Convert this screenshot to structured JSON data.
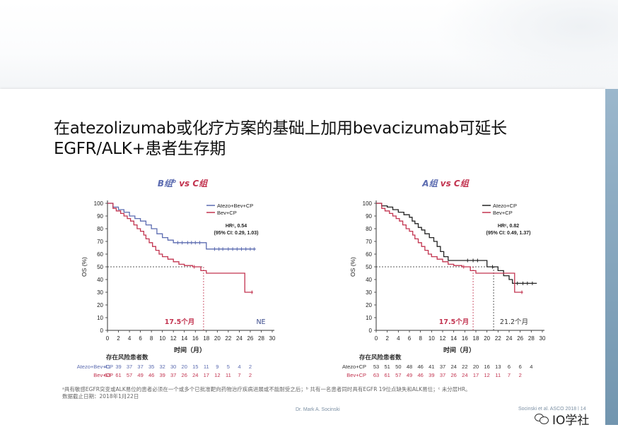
{
  "slide": {
    "title_line1": "在atezolizumab或化疗方案的基础上加用bevacizumab可延长",
    "title_line2": "EGFR/ALK+患者生存期",
    "footnote_line1": "ᵃ具有敏感EGFR突变或ALK易位的患者必须在一个或多个已批准靶向药物治疗疾病进展或不能耐受之后；ᵇ 共有一名患者同时具有EGFR 19位点缺失和ALK易位；ᶜ 未分层HR。",
    "footnote_line2": "数据截止日期：2018年1月22日",
    "presenter": "Dr. Mark A. Socinski",
    "citation": "Socinski et al. ASCO 2018 | 14",
    "watermark": "IO学社"
  },
  "chart_data": [
    {
      "type": "line",
      "subtype": "kaplan-meier",
      "title_left": "B组",
      "title_sup": "b",
      "title_vs": " vs ",
      "title_right": "C组",
      "xlabel": "时间（月）",
      "ylabel": "OS (%)",
      "xlim": [
        0,
        30
      ],
      "ylim": [
        0,
        100
      ],
      "xticks": [
        0,
        2,
        4,
        6,
        8,
        10,
        12,
        14,
        16,
        18,
        20,
        22,
        24,
        26,
        28,
        30
      ],
      "yticks": [
        0,
        10,
        20,
        30,
        40,
        50,
        60,
        70,
        80,
        90,
        100
      ],
      "legend_position": "top-right",
      "hr_line": "HRᶜ, 0.54",
      "ci_line": "(95% CI: 0.29, 1.03)",
      "series": [
        {
          "name": "Atezo+Bev+CP",
          "color": "#5b6bb0",
          "points": [
            [
              0,
              100
            ],
            [
              1,
              100
            ],
            [
              1,
              97
            ],
            [
              2,
              97
            ],
            [
              2,
              95
            ],
            [
              3,
              95
            ],
            [
              3,
              93
            ],
            [
              4,
              93
            ],
            [
              4,
              90
            ],
            [
              5,
              90
            ],
            [
              5,
              88
            ],
            [
              6,
              88
            ],
            [
              6,
              86
            ],
            [
              7,
              86
            ],
            [
              7,
              83
            ],
            [
              8,
              83
            ],
            [
              8,
              80
            ],
            [
              9,
              80
            ],
            [
              9,
              76
            ],
            [
              10,
              76
            ],
            [
              10,
              73
            ],
            [
              11,
              73
            ],
            [
              11,
              71
            ],
            [
              12,
              71
            ],
            [
              12,
              69
            ],
            [
              18,
              69
            ],
            [
              18,
              64
            ],
            [
              27,
              64
            ]
          ],
          "censors": [
            [
              12.8,
              69
            ],
            [
              13.6,
              69
            ],
            [
              14.6,
              69
            ],
            [
              15.3,
              69
            ],
            [
              16.0,
              69
            ],
            [
              16.8,
              69
            ],
            [
              19.5,
              64
            ],
            [
              20.3,
              64
            ],
            [
              21.0,
              64
            ],
            [
              22.0,
              64
            ],
            [
              22.8,
              64
            ],
            [
              23.6,
              64
            ],
            [
              24.4,
              64
            ],
            [
              25.2,
              64
            ],
            [
              26.0,
              64
            ],
            [
              26.7,
              64
            ]
          ]
        },
        {
          "name": "Bev+CP",
          "color": "#c2334f",
          "points": [
            [
              0,
              100
            ],
            [
              1,
              100
            ],
            [
              1,
              96
            ],
            [
              1.6,
              96
            ],
            [
              1.6,
              94
            ],
            [
              2.4,
              94
            ],
            [
              2.4,
              92
            ],
            [
              3,
              92
            ],
            [
              3,
              90
            ],
            [
              3.6,
              90
            ],
            [
              3.6,
              88
            ],
            [
              4.2,
              88
            ],
            [
              4.2,
              86
            ],
            [
              4.8,
              86
            ],
            [
              4.8,
              83
            ],
            [
              5.4,
              83
            ],
            [
              5.4,
              80
            ],
            [
              6,
              80
            ],
            [
              6,
              78
            ],
            [
              6.6,
              78
            ],
            [
              6.6,
              75
            ],
            [
              7,
              75
            ],
            [
              7,
              72
            ],
            [
              7.6,
              72
            ],
            [
              7.6,
              69
            ],
            [
              8.2,
              69
            ],
            [
              8.2,
              66
            ],
            [
              8.8,
              66
            ],
            [
              8.8,
              63
            ],
            [
              9.4,
              63
            ],
            [
              9.4,
              60
            ],
            [
              10,
              60
            ],
            [
              10,
              58
            ],
            [
              11,
              58
            ],
            [
              11,
              56
            ],
            [
              12,
              56
            ],
            [
              12,
              54
            ],
            [
              13,
              54
            ],
            [
              13,
              52
            ],
            [
              14,
              52
            ],
            [
              14,
              51
            ],
            [
              15.5,
              51
            ],
            [
              15.5,
              50
            ],
            [
              17,
              50
            ],
            [
              17,
              47
            ],
            [
              18,
              47
            ],
            [
              18,
              45
            ],
            [
              25,
              45
            ],
            [
              25,
              30
            ],
            [
              26.5,
              30
            ]
          ],
          "censors": [
            [
              15.8,
              50
            ],
            [
              26.3,
              30
            ]
          ]
        }
      ],
      "median_annotations": [
        {
          "label": "17.5个月",
          "x": 17.5,
          "color": "#c2334f"
        },
        {
          "label": "NE",
          "x": null,
          "color": "#3a4a8c"
        }
      ],
      "risk_table": {
        "title": "存在风险患者数",
        "rows": [
          {
            "label": "Atezo+Bev+CP",
            "color": "#5b6bb0",
            "values": [
              "41",
              "39",
              "37",
              "37",
              "35",
              "32",
              "30",
              "20",
              "15",
              "11",
              "9",
              "5",
              "4",
              "2"
            ]
          },
          {
            "label": "Bev+CP",
            "color": "#c2334f",
            "values": [
              "63",
              "61",
              "57",
              "49",
              "46",
              "39",
              "37",
              "26",
              "24",
              "17",
              "12",
              "11",
              "7",
              "2"
            ]
          }
        ]
      }
    },
    {
      "type": "line",
      "subtype": "kaplan-meier",
      "title_left": "A组",
      "title_sup": "",
      "title_vs": " vs ",
      "title_right": "C组",
      "xlabel": "时间（月）",
      "ylabel": "OS (%)",
      "xlim": [
        0,
        30
      ],
      "ylim": [
        0,
        100
      ],
      "xticks": [
        0,
        2,
        4,
        6,
        8,
        10,
        12,
        14,
        16,
        18,
        20,
        22,
        24,
        26,
        28,
        30
      ],
      "yticks": [
        0,
        10,
        20,
        30,
        40,
        50,
        60,
        70,
        80,
        90,
        100
      ],
      "legend_position": "top-right",
      "hr_line": "HRᶜ, 0.82",
      "ci_line": "(95% CI: 0.49, 1.37)",
      "series": [
        {
          "name": "Atezo+CP",
          "color": "#222222",
          "points": [
            [
              0,
              100
            ],
            [
              1,
              100
            ],
            [
              1,
              98
            ],
            [
              2,
              98
            ],
            [
              2,
              97
            ],
            [
              3,
              97
            ],
            [
              3,
              95
            ],
            [
              4,
              95
            ],
            [
              4,
              93
            ],
            [
              5,
              93
            ],
            [
              5,
              91
            ],
            [
              6,
              91
            ],
            [
              6,
              89
            ],
            [
              6.5,
              89
            ],
            [
              6.5,
              86
            ],
            [
              7,
              86
            ],
            [
              7,
              84
            ],
            [
              7.6,
              84
            ],
            [
              7.6,
              81
            ],
            [
              8.2,
              81
            ],
            [
              8.2,
              79
            ],
            [
              8.8,
              79
            ],
            [
              8.8,
              76
            ],
            [
              9.6,
              76
            ],
            [
              9.6,
              73
            ],
            [
              10.4,
              73
            ],
            [
              10.4,
              70
            ],
            [
              11,
              70
            ],
            [
              11,
              66
            ],
            [
              11.6,
              66
            ],
            [
              11.6,
              62
            ],
            [
              12.2,
              62
            ],
            [
              12.2,
              58
            ],
            [
              13,
              58
            ],
            [
              13,
              55
            ],
            [
              20,
              55
            ],
            [
              20,
              50
            ],
            [
              22,
              50
            ],
            [
              22,
              47
            ],
            [
              23,
              47
            ],
            [
              23,
              43
            ],
            [
              24,
              43
            ],
            [
              24,
              40
            ],
            [
              24.6,
              40
            ],
            [
              24.6,
              37
            ],
            [
              29,
              37
            ]
          ],
          "censors": [
            [
              16.5,
              55
            ],
            [
              17.5,
              55
            ],
            [
              18.3,
              55
            ],
            [
              21.0,
              50
            ],
            [
              25.5,
              37
            ],
            [
              26.5,
              37
            ],
            [
              27.3,
              37
            ],
            [
              28.2,
              37
            ]
          ]
        },
        {
          "name": "Bev+CP",
          "color": "#c2334f",
          "points": [
            [
              0,
              100
            ],
            [
              1,
              100
            ],
            [
              1,
              96
            ],
            [
              1.6,
              96
            ],
            [
              1.6,
              94
            ],
            [
              2.4,
              94
            ],
            [
              2.4,
              92
            ],
            [
              3,
              92
            ],
            [
              3,
              90
            ],
            [
              3.6,
              90
            ],
            [
              3.6,
              88
            ],
            [
              4.2,
              88
            ],
            [
              4.2,
              86
            ],
            [
              4.8,
              86
            ],
            [
              4.8,
              83
            ],
            [
              5.4,
              83
            ],
            [
              5.4,
              80
            ],
            [
              6,
              80
            ],
            [
              6,
              78
            ],
            [
              6.6,
              78
            ],
            [
              6.6,
              75
            ],
            [
              7,
              75
            ],
            [
              7,
              72
            ],
            [
              7.6,
              72
            ],
            [
              7.6,
              69
            ],
            [
              8.2,
              69
            ],
            [
              8.2,
              66
            ],
            [
              8.8,
              66
            ],
            [
              8.8,
              63
            ],
            [
              9.4,
              63
            ],
            [
              9.4,
              60
            ],
            [
              10,
              60
            ],
            [
              10,
              58
            ],
            [
              11,
              58
            ],
            [
              11,
              56
            ],
            [
              12,
              56
            ],
            [
              12,
              54
            ],
            [
              13,
              54
            ],
            [
              13,
              52
            ],
            [
              14,
              52
            ],
            [
              14,
              51
            ],
            [
              15.5,
              51
            ],
            [
              15.5,
              50
            ],
            [
              17,
              50
            ],
            [
              17,
              47
            ],
            [
              18,
              47
            ],
            [
              18,
              45
            ],
            [
              25,
              45
            ],
            [
              25,
              30
            ],
            [
              26.5,
              30
            ]
          ],
          "censors": [
            [
              15.8,
              50
            ],
            [
              26.3,
              30
            ]
          ]
        }
      ],
      "median_annotations": [
        {
          "label": "17.5个月",
          "x": 17.5,
          "color": "#c2334f"
        },
        {
          "label": "21.2个月",
          "x": 21.2,
          "color": "#333333"
        }
      ],
      "risk_table": {
        "title": "存在风险患者数",
        "rows": [
          {
            "label": "Atezo+CP",
            "color": "#333333",
            "values": [
              "53",
              "51",
              "50",
              "48",
              "46",
              "41",
              "37",
              "24",
              "22",
              "20",
              "16",
              "13",
              "6",
              "6",
              "4"
            ]
          },
          {
            "label": "Bev+CP",
            "color": "#c2334f",
            "values": [
              "63",
              "61",
              "57",
              "49",
              "46",
              "39",
              "37",
              "26",
              "24",
              "17",
              "12",
              "11",
              "7",
              "2"
            ]
          }
        ]
      }
    }
  ]
}
